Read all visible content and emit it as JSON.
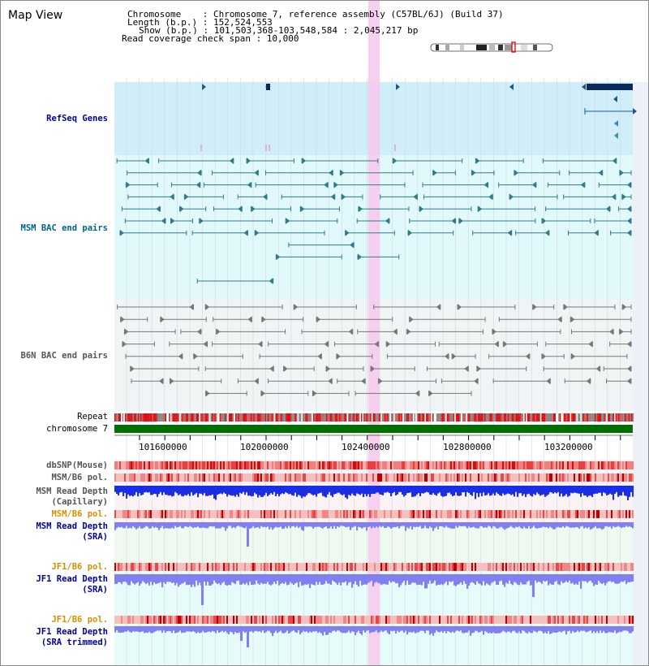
{
  "map_title": "Map View",
  "header_info": {
    "chromosome_line": "Chromosome    : Chromosome 7, reference assembly (C57BL/6J) (Build 37)",
    "length_line": "Length (b.p.) : 152,524,553",
    "show_line": "Show (b.p.) : 101,503,368-103,548,584 : 2,045,217 bp",
    "coverage_line": "Read coverage check span : 10,000"
  },
  "tracks": {
    "refseq": "RefSeq Genes",
    "msm_bac": "MSM BAC end pairs",
    "b6n_bac": "B6N BAC end pairs",
    "repeat": "Repeat",
    "chromosome": "chromosome 7",
    "dbsnp": "dbSNP(Mouse)",
    "msm_b6_pol_1": "MSM/B6 pol.",
    "msm_depth_cap_1": "MSM Read Depth",
    "msm_depth_cap_2": "(Capillary)",
    "msm_b6_pol_2": "MSM/B6 pol.",
    "msm_depth_sra_1": "MSM Read Depth",
    "msm_depth_sra_2": "(SRA)",
    "jf1_b6_pol_1": "JF1/B6 pol.",
    "jf1_depth_sra_1": "JF1 Read Depth",
    "jf1_depth_sra_2": "(SRA)",
    "jf1_b6_pol_2": "JF1/B6 pol.",
    "jf1_depth_trim_1": "JF1 Read Depth",
    "jf1_depth_trim_2": "(SRA trimmed)"
  },
  "axis_ticks": [
    "101600000",
    "102000000",
    "102400000",
    "102800000",
    "103200000"
  ],
  "colors": {
    "refseq_band": "#cfeefa",
    "msm_band": "#e2f9fb",
    "b6n_band": "#f1f4f5",
    "refseq_gene": "#1a5a8a",
    "msm_bac": "#2e7d8c",
    "b6n_bac": "#777777",
    "chromosome": "#007000",
    "depth_blue": "#1a2ee8",
    "depth_light": "#8080f0",
    "highlight": "#f7c8ec",
    "navy_label": "#000099",
    "teal_label": "#006688",
    "orange_label": "#d49000"
  }
}
